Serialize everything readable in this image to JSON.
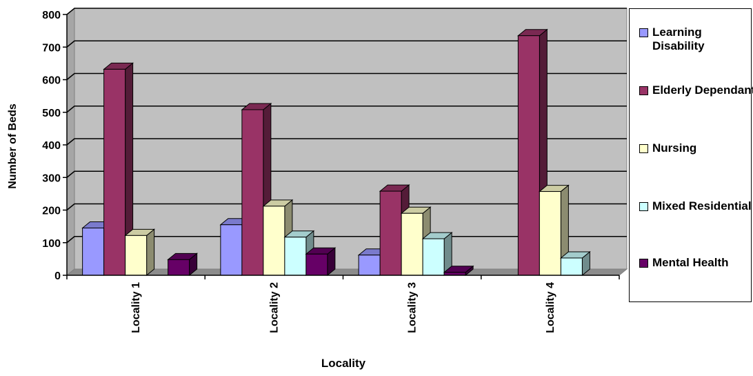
{
  "chart_data": {
    "type": "bar",
    "title": "",
    "xlabel": "Locality",
    "ylabel": "Number of Beds",
    "ylim": [
      0,
      800
    ],
    "yticks": [
      0,
      100,
      200,
      300,
      400,
      500,
      600,
      700,
      800
    ],
    "categories": [
      "Locality 1",
      "Locality 2",
      "Locality 3",
      "Locality 4"
    ],
    "grid": true,
    "legend_position": "right",
    "three_d": true,
    "series": [
      {
        "name": "Learning Disability",
        "color": "#9999ff",
        "values": [
          145,
          155,
          62,
          0
        ]
      },
      {
        "name": "Elderly Dependant",
        "color": "#993366",
        "values": [
          632,
          508,
          258,
          735
        ]
      },
      {
        "name": "Nursing",
        "color": "#ffffcc",
        "values": [
          122,
          212,
          190,
          257
        ]
      },
      {
        "name": "Mixed Residential",
        "color": "#ccffff",
        "values": [
          0,
          117,
          112,
          53
        ]
      },
      {
        "name": "Mental Health",
        "color": "#660066",
        "values": [
          48,
          65,
          9,
          0
        ]
      }
    ]
  }
}
